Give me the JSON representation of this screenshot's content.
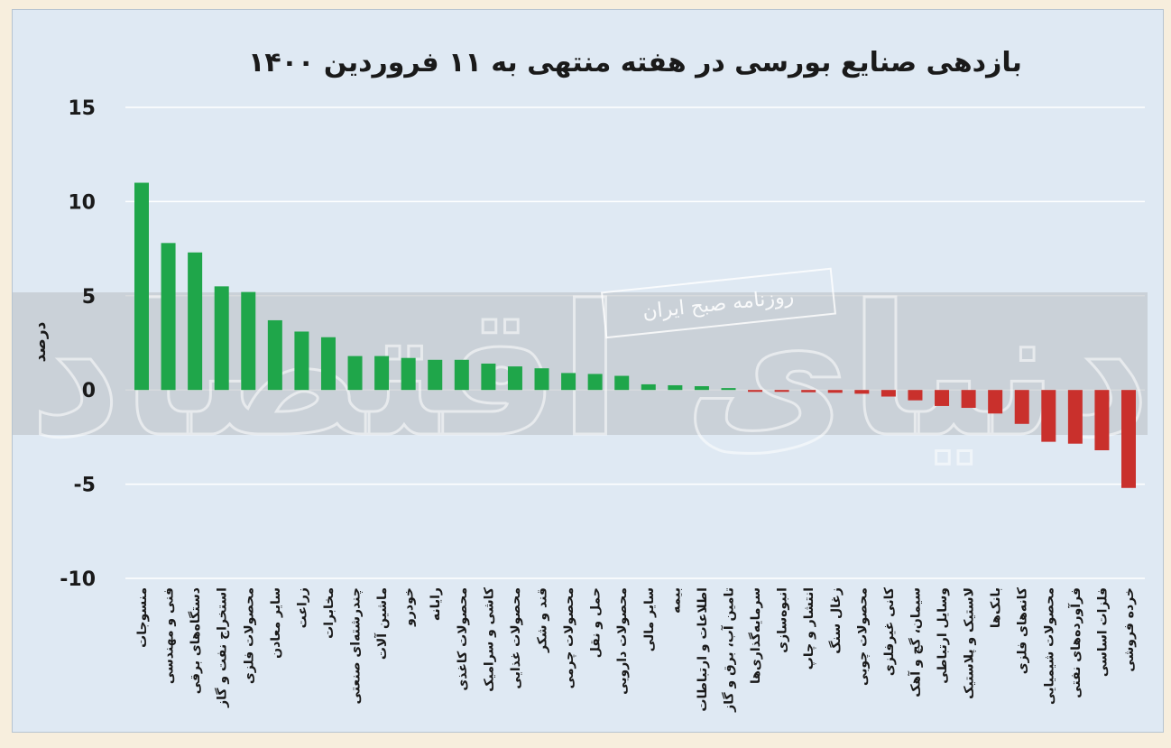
{
  "chart_data": {
    "type": "bar",
    "title": "بازدهی صنایع بورسی در هفته منتهی به ۱۱ فروردین ۱۴۰۰",
    "ylabel": "درصد",
    "xlabel": "",
    "ylim": [
      -10,
      15
    ],
    "yticks": [
      15,
      10,
      5,
      0,
      -5,
      -10
    ],
    "ytick_labels": [
      "15",
      "10",
      "5",
      "0",
      "-5",
      "-10"
    ],
    "grid": true,
    "colors": {
      "positive": "#1fa64a",
      "negative": "#c9302c",
      "background": "#dfe9f3",
      "gridline": "#ffffff"
    },
    "categories": [
      "منسوجات",
      "فنی و مهندسی",
      "دستگاه‌های برقی",
      "استخراج نفت و گاز",
      "محصولات فلزی",
      "سایر معادن",
      "زراعت",
      "مخابرات",
      "چندرشته‌ای صنعتی",
      "ماشین آلات",
      "خودرو",
      "رایانه",
      "محصولات کاغذی",
      "کاشی و سرامیک",
      "محصولات غذایی",
      "قند و شکر",
      "محصولات چرمی",
      "حمل و نقل",
      "محصولات دارویی",
      "سایر مالی",
      "بیمه",
      "اطلاعات و ارتباطات",
      "تامین آب، برق و گاز",
      "سرمایه‌گذاری‌ها",
      "انبوه‌سازی",
      "انتشار و چاپ",
      "زغال سنگ",
      "محصولات چوبی",
      "کانی غیرفلزی",
      "سیمان، گچ و آهک",
      "وسایل ارتباطی",
      "لاستیک و پلاستیک",
      "بانک‌ها",
      "کانه‌های فلزی",
      "محصولات شیمیایی",
      "فرآورده‌های نفتی",
      "فلزات اساسی",
      "خرده فروشی"
    ],
    "values": [
      11.0,
      7.8,
      7.3,
      5.5,
      5.2,
      3.7,
      3.1,
      2.8,
      1.8,
      1.8,
      1.7,
      1.6,
      1.6,
      1.4,
      1.25,
      1.15,
      0.9,
      0.85,
      0.75,
      0.3,
      0.25,
      0.2,
      0.1,
      -0.1,
      -0.1,
      -0.12,
      -0.15,
      -0.2,
      -0.35,
      -0.55,
      -0.85,
      -0.95,
      -1.25,
      -1.8,
      -2.75,
      -2.85,
      -3.2,
      -5.2
    ]
  },
  "watermark": {
    "brand": "دنیای اقتصاد",
    "subtitle": "روزنامه صبح ایران"
  }
}
